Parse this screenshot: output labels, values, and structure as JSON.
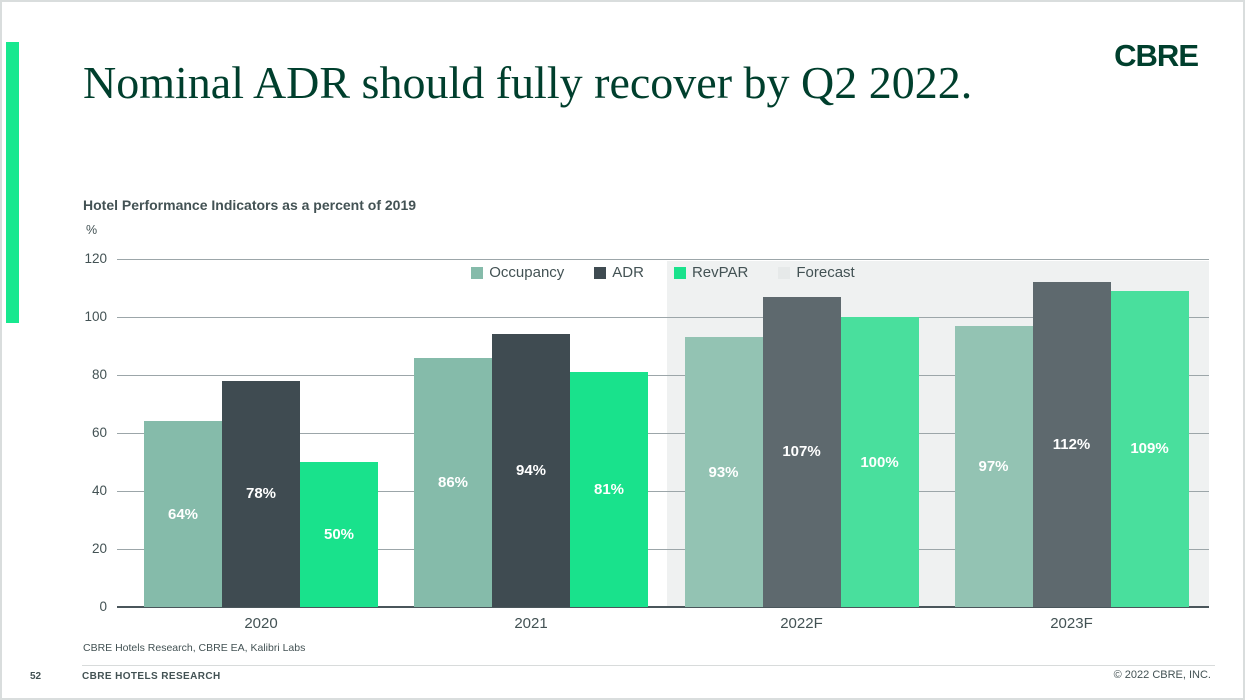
{
  "slide": {
    "title": "Nominal ADR should fully recover by Q2 2022.",
    "logo_text": "CBRE",
    "page_number": "52",
    "footer_left": "CBRE HOTELS RESEARCH",
    "footer_right": "© 2022 CBRE, INC.",
    "source_note": "CBRE Hotels Research, CBRE EA, Kalibri Labs"
  },
  "colors": {
    "brand_green": "#003F2D",
    "accent_green": "#17E88F",
    "text_slate": "#435254",
    "grid_gray": "#9CA6A9",
    "axis_dark": "#4A565B",
    "forecast_band": "#EFF1F1"
  },
  "chart_data": {
    "type": "bar",
    "title": "Hotel Performance Indicators as a percent of 2019",
    "unit_label": "%",
    "categories": [
      "2020",
      "2021",
      "2022F",
      "2023F"
    ],
    "forecast_categories": [
      "2022F",
      "2023F"
    ],
    "series": [
      {
        "name": "Occupancy",
        "values": [
          64,
          86,
          93,
          97
        ],
        "data_labels": [
          "64%",
          "86%",
          "93%",
          "97%"
        ],
        "color": "#85BBAA",
        "forecast_color": "#93C3B3"
      },
      {
        "name": "ADR",
        "values": [
          78,
          94,
          107,
          112
        ],
        "data_labels": [
          "78%",
          "94%",
          "107%",
          "112%"
        ],
        "color": "#3F4B51",
        "forecast_color": "#5E696E"
      },
      {
        "name": "RevPAR",
        "values": [
          50,
          81,
          100,
          109
        ],
        "data_labels": [
          "50%",
          "81%",
          "100%",
          "109%"
        ],
        "color": "#19E28C",
        "forecast_color": "#49DF9D"
      }
    ],
    "legend_items": [
      {
        "label": "Occupancy",
        "color": "#85BBAA"
      },
      {
        "label": "ADR",
        "color": "#3F4B51"
      },
      {
        "label": "RevPAR",
        "color": "#19E28C"
      },
      {
        "label": "Forecast",
        "color": "#E6E9E9"
      }
    ],
    "ylim": [
      0,
      120
    ],
    "yticks": [
      0,
      20,
      40,
      60,
      80,
      100,
      120
    ],
    "grid": true,
    "legend_position": "top-center"
  }
}
